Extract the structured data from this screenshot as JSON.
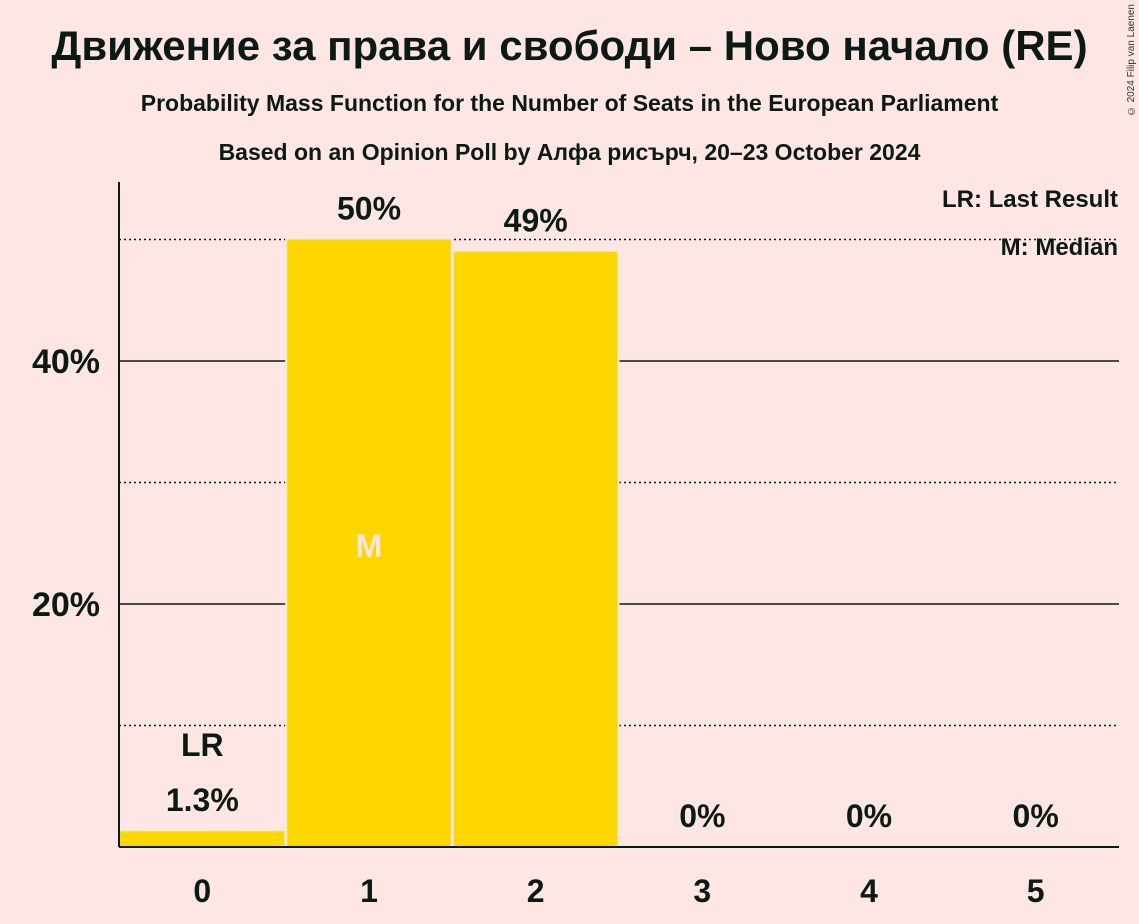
{
  "title": "Движение за права и свободи – Ново начало (RE)",
  "subtitle": "Probability Mass Function for the Number of Seats in the European Parliament",
  "subtitle2": "Based on an Opinion Poll by Алфа рисърч, 20–23 October 2024",
  "copyright": "© 2024 Filip van Laenen",
  "legend": {
    "last_result": "LR: Last Result",
    "median": "M: Median"
  },
  "colors": {
    "bar": "#ffd700",
    "background": "#fde6e4",
    "text": "#0b1a14",
    "median_label": "#fde6e4"
  },
  "chart_data": {
    "type": "bar",
    "categories": [
      "0",
      "1",
      "2",
      "3",
      "4",
      "5"
    ],
    "values": [
      1.3,
      50,
      49,
      0,
      0,
      0
    ],
    "value_labels": [
      "1.3%",
      "50%",
      "49%",
      "0%",
      "0%",
      "0%"
    ],
    "ylim": [
      0,
      54
    ],
    "yticks": [
      20,
      40
    ],
    "ytick_labels": [
      "20%",
      "40%"
    ],
    "minor_gridlines": [
      10,
      30,
      50
    ],
    "last_result_category": "0",
    "last_result_label": "LR",
    "median_category": "1",
    "median_label": "M"
  }
}
